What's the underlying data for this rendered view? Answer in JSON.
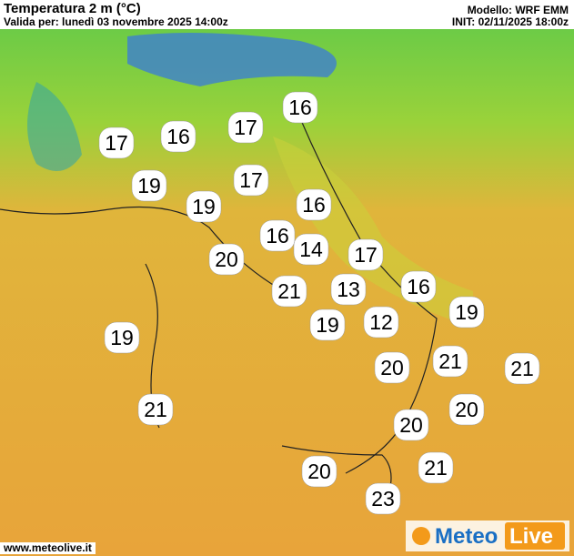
{
  "header": {
    "title": "Temperatura 2 m (°C)",
    "valid": "Valida per: lunedì 03 novembre 2025 14:00z",
    "model": "Modello: WRF EMM",
    "init": "INIT: 02/11/2025 18:00z"
  },
  "footer": {
    "site": "www.meteolive.it",
    "logo_left": "Meteo",
    "logo_right": "Live"
  },
  "stations": [
    17,
    16,
    17,
    16,
    19,
    17,
    19,
    16,
    16,
    14,
    20,
    17,
    21,
    13,
    16,
    19,
    19,
    12,
    19,
    20,
    21,
    21,
    21,
    20,
    20,
    21,
    20,
    23
  ]
}
